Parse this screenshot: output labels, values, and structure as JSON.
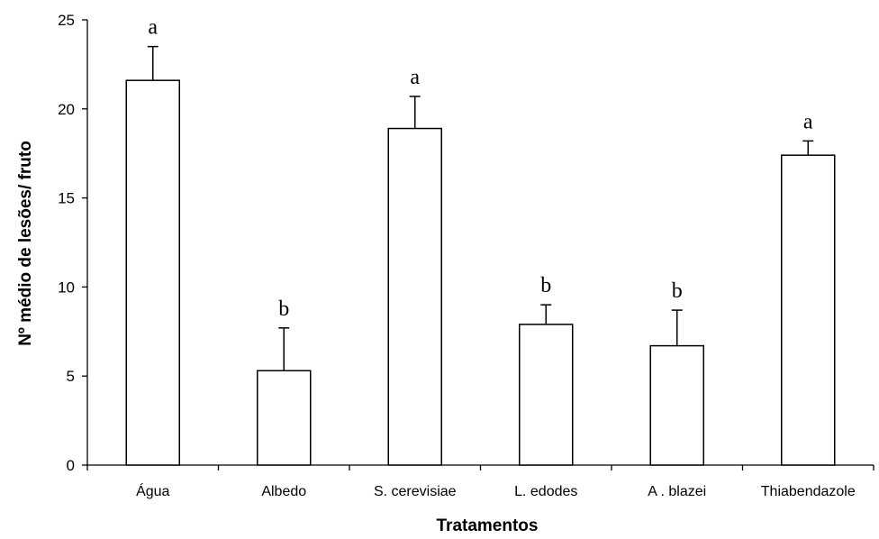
{
  "chart_data": {
    "type": "bar",
    "title": "",
    "xlabel": "Tratamentos",
    "ylabel": "Nº médio de lesões/ fruto",
    "ylim": [
      0,
      25
    ],
    "yticks": [
      0,
      5,
      10,
      15,
      20,
      25
    ],
    "categories": [
      "Água",
      "Albedo",
      "S. cerevisiae",
      "L. edodes",
      "A . blazei",
      "Thiabendazole"
    ],
    "values": [
      21.6,
      5.3,
      18.9,
      7.9,
      6.7,
      17.4
    ],
    "errors": [
      1.9,
      2.4,
      1.8,
      1.1,
      2.0,
      0.8
    ],
    "significance_letters": [
      "a",
      "b",
      "a",
      "b",
      "b",
      "a"
    ],
    "grid": false,
    "bar_fill": "#ffffff",
    "bar_stroke": "#000000"
  }
}
